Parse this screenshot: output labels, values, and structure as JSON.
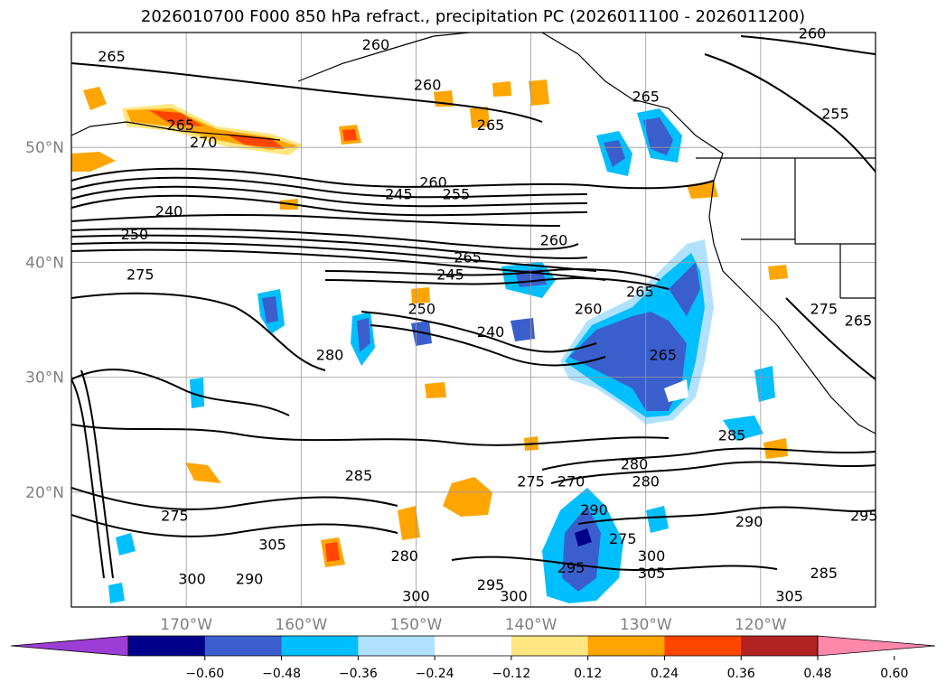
{
  "chart_data": {
    "type": "contour-map",
    "title": "2026010700 F000 850 hPa refract., precipitation PC (2026011100 - 2026011200)",
    "x_ticks": [
      "170°W",
      "160°W",
      "150°W",
      "140°W",
      "130°W",
      "120°W"
    ],
    "y_ticks": [
      "20°N",
      "30°N",
      "40°N",
      "50°N"
    ],
    "x_range_lon": [
      -180,
      -110
    ],
    "y_range_lat": [
      10,
      60
    ],
    "grid": true,
    "colorbar": {
      "orientation": "horizontal",
      "extend": "both",
      "levels": [
        "-0.60",
        "-0.48",
        "-0.36",
        "-0.24",
        "-0.12",
        "0.12",
        "0.24",
        "0.36",
        "0.48",
        "0.60"
      ],
      "colors": [
        "#9c3dd6",
        "#00008b",
        "#3a5fcd",
        "#00bfff",
        "#b0e2ff",
        "#ffffff",
        "#ffe680",
        "#ffa500",
        "#ff4500",
        "#b22222",
        "#ff88aa"
      ]
    },
    "contour_levels_labeled": [
      "240",
      "245",
      "250",
      "255",
      "260",
      "265",
      "270",
      "275",
      "280",
      "285",
      "290",
      "295",
      "300",
      "305"
    ],
    "contour_labels": [
      {
        "text": "265",
        "lon": -176.5,
        "lat": 57.5
      },
      {
        "text": "260",
        "lon": -153.5,
        "lat": 58.5
      },
      {
        "text": "260",
        "lon": -149,
        "lat": 55
      },
      {
        "text": "260",
        "lon": -115.5,
        "lat": 59.5
      },
      {
        "text": "265",
        "lon": -130,
        "lat": 54
      },
      {
        "text": "265",
        "lon": -143.5,
        "lat": 51.5
      },
      {
        "text": "255",
        "lon": -113.5,
        "lat": 52.5
      },
      {
        "text": "265",
        "lon": -170.5,
        "lat": 51.5
      },
      {
        "text": "270",
        "lon": -168.5,
        "lat": 50
      },
      {
        "text": "260",
        "lon": -148.5,
        "lat": 46.5
      },
      {
        "text": "255",
        "lon": -146.5,
        "lat": 45.5
      },
      {
        "text": "245",
        "lon": -151.5,
        "lat": 45.5
      },
      {
        "text": "240",
        "lon": -171.5,
        "lat": 44
      },
      {
        "text": "250",
        "lon": -174.5,
        "lat": 42
      },
      {
        "text": "260",
        "lon": -138,
        "lat": 41.5
      },
      {
        "text": "265",
        "lon": -145.5,
        "lat": 40
      },
      {
        "text": "245",
        "lon": -147,
        "lat": 38.5
      },
      {
        "text": "275",
        "lon": -174,
        "lat": 38.5
      },
      {
        "text": "250",
        "lon": -149.5,
        "lat": 35.5
      },
      {
        "text": "240",
        "lon": -143.5,
        "lat": 33.5
      },
      {
        "text": "265",
        "lon": -130.5,
        "lat": 37
      },
      {
        "text": "260",
        "lon": -135,
        "lat": 35.5
      },
      {
        "text": "265",
        "lon": -128.5,
        "lat": 31.5
      },
      {
        "text": "280",
        "lon": -157.5,
        "lat": 31.5
      },
      {
        "text": "275",
        "lon": -114.5,
        "lat": 35.5
      },
      {
        "text": "265",
        "lon": -111.5,
        "lat": 34.5
      },
      {
        "text": "285",
        "lon": -155,
        "lat": 21
      },
      {
        "text": "275",
        "lon": -140,
        "lat": 20.5
      },
      {
        "text": "270",
        "lon": -136.5,
        "lat": 20.5
      },
      {
        "text": "280",
        "lon": -131,
        "lat": 22
      },
      {
        "text": "280",
        "lon": -130,
        "lat": 20.5
      },
      {
        "text": "290",
        "lon": -134.5,
        "lat": 18
      },
      {
        "text": "285",
        "lon": -122.5,
        "lat": 24.5
      },
      {
        "text": "290",
        "lon": -121,
        "lat": 17
      },
      {
        "text": "275",
        "lon": -171,
        "lat": 17.5
      },
      {
        "text": "305",
        "lon": -162.5,
        "lat": 15
      },
      {
        "text": "300",
        "lon": -169.5,
        "lat": 12
      },
      {
        "text": "275",
        "lon": -132,
        "lat": 15.5
      },
      {
        "text": "295",
        "lon": -136.5,
        "lat": 13
      },
      {
        "text": "300",
        "lon": -129.5,
        "lat": 14
      },
      {
        "text": "305",
        "lon": -129.5,
        "lat": 12.5
      },
      {
        "text": "295",
        "lon": -143.5,
        "lat": 11.5
      },
      {
        "text": "300",
        "lon": -141.5,
        "lat": 10.5
      },
      {
        "text": "300",
        "lon": -150,
        "lat": 10.5
      },
      {
        "text": "280",
        "lon": -151,
        "lat": 14
      },
      {
        "text": "285",
        "lon": -114.5,
        "lat": 12.5
      },
      {
        "text": "305",
        "lon": -117.5,
        "lat": 10.5
      },
      {
        "text": "290",
        "lon": -164.5,
        "lat": 12
      },
      {
        "text": "295",
        "lon": -111,
        "lat": 17.5
      }
    ]
  }
}
